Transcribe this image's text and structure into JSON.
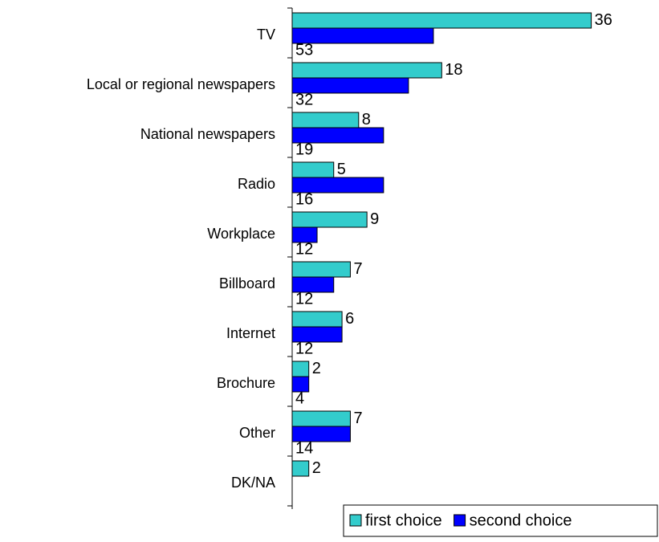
{
  "chart_data": {
    "type": "bar",
    "orientation": "horizontal",
    "categories": [
      "TV",
      "Local or regional newspapers",
      "National newspapers",
      "Radio",
      "Workplace",
      "Billboard",
      "Internet",
      "Brochure",
      "Other",
      "DK/NA"
    ],
    "series": [
      {
        "name": "first choice",
        "color": "#33cccc",
        "values": [
          36,
          18,
          8,
          5,
          9,
          7,
          6,
          2,
          7,
          2
        ]
      },
      {
        "name": "second choice",
        "color": "#0000ff",
        "values": [
          17,
          14,
          11,
          11,
          3,
          5,
          6,
          2,
          7,
          null
        ]
      }
    ],
    "totals": [
      53,
      32,
      19,
      16,
      12,
      12,
      12,
      4,
      14,
      null
    ],
    "xlim": [
      0,
      40
    ],
    "legend": "bottom-right"
  }
}
